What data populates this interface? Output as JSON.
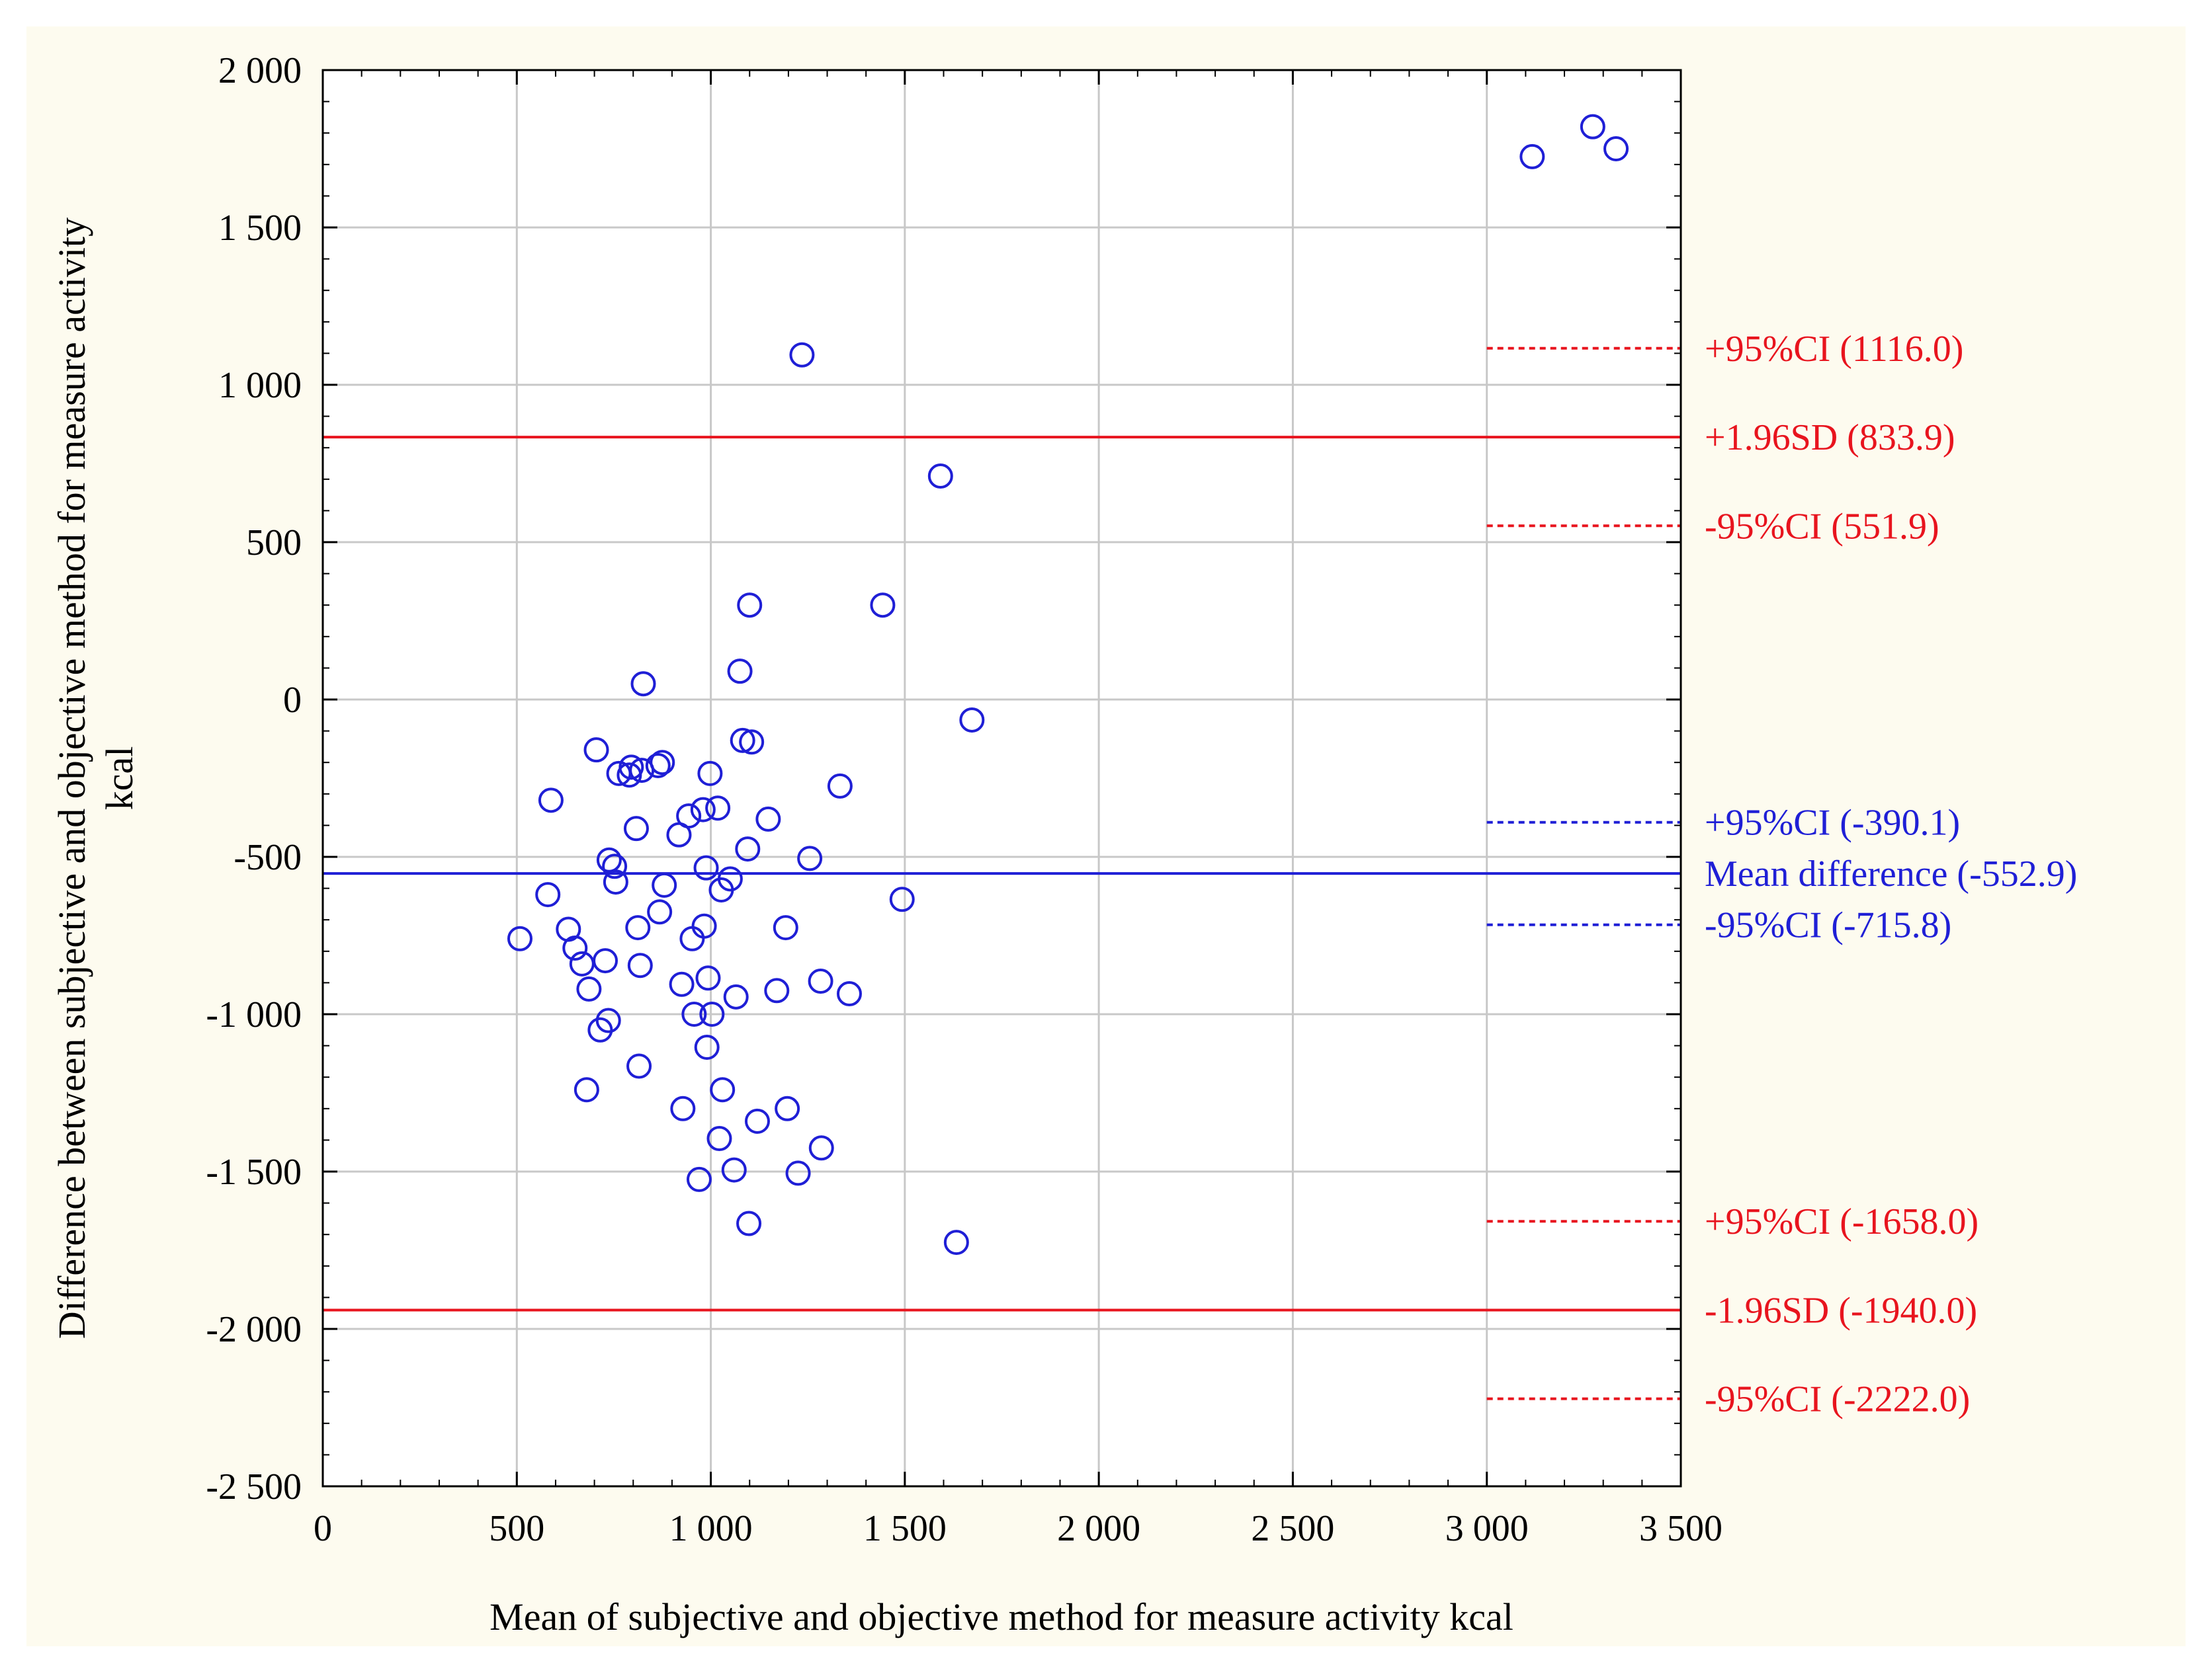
{
  "chart_data": {
    "type": "scatter",
    "title": "",
    "xlabel": "Mean of subjective and objective method for measure activity kcal",
    "ylabel_line1": "Difference between subjective and objective method for measure activity",
    "ylabel_line2": "kcal",
    "xlim": [
      0,
      3500
    ],
    "ylim": [
      -2500,
      2000
    ],
    "x_ticks": [
      0,
      500,
      1000,
      1500,
      2000,
      2500,
      3000,
      3500
    ],
    "x_tick_labels": [
      "0",
      "500",
      "1 000",
      "1 500",
      "2 000",
      "2 500",
      "3 000",
      "3 500"
    ],
    "y_ticks": [
      2000,
      1500,
      1000,
      500,
      0,
      -500,
      -1000,
      -1500,
      -2000,
      -2500
    ],
    "y_tick_labels": [
      "2 000",
      "1 500",
      "1 000",
      "500",
      "0",
      "-500",
      "-1 000",
      "-1 500",
      "-2 000",
      "-2 500"
    ],
    "grid": true,
    "colors": {
      "background": "#fdfbef",
      "plot_background": "#ffffff",
      "points": "#1f1fd6",
      "red_lines": "#e8141e",
      "blue_lines": "#1f1fd6",
      "grid": "#c8c8c8"
    },
    "points": [
      {
        "x": 508,
        "y": -760
      },
      {
        "x": 580,
        "y": -620
      },
      {
        "x": 588,
        "y": -320
      },
      {
        "x": 633,
        "y": -730
      },
      {
        "x": 650,
        "y": -790
      },
      {
        "x": 668,
        "y": -840
      },
      {
        "x": 686,
        "y": -920
      },
      {
        "x": 680,
        "y": -1240
      },
      {
        "x": 705,
        "y": -160
      },
      {
        "x": 715,
        "y": -1050
      },
      {
        "x": 728,
        "y": -830
      },
      {
        "x": 736,
        "y": -1020
      },
      {
        "x": 738,
        "y": -510
      },
      {
        "x": 752,
        "y": -530
      },
      {
        "x": 755,
        "y": -580
      },
      {
        "x": 763,
        "y": -235
      },
      {
        "x": 790,
        "y": -240
      },
      {
        "x": 795,
        "y": -215
      },
      {
        "x": 808,
        "y": -410
      },
      {
        "x": 812,
        "y": -725
      },
      {
        "x": 815,
        "y": -1165
      },
      {
        "x": 818,
        "y": -845
      },
      {
        "x": 822,
        "y": -225
      },
      {
        "x": 826,
        "y": 50
      },
      {
        "x": 864,
        "y": -210
      },
      {
        "x": 868,
        "y": -675
      },
      {
        "x": 875,
        "y": -200
      },
      {
        "x": 880,
        "y": -590
      },
      {
        "x": 918,
        "y": -430
      },
      {
        "x": 925,
        "y": -905
      },
      {
        "x": 928,
        "y": -1300
      },
      {
        "x": 943,
        "y": -370
      },
      {
        "x": 952,
        "y": -760
      },
      {
        "x": 957,
        "y": -1000
      },
      {
        "x": 970,
        "y": -1525
      },
      {
        "x": 980,
        "y": -350
      },
      {
        "x": 983,
        "y": -720
      },
      {
        "x": 988,
        "y": -535
      },
      {
        "x": 990,
        "y": -1105
      },
      {
        "x": 993,
        "y": -885
      },
      {
        "x": 998,
        "y": -235
      },
      {
        "x": 1003,
        "y": -1000
      },
      {
        "x": 1018,
        "y": -345
      },
      {
        "x": 1022,
        "y": -1395
      },
      {
        "x": 1027,
        "y": -605
      },
      {
        "x": 1030,
        "y": -1240
      },
      {
        "x": 1050,
        "y": -570
      },
      {
        "x": 1060,
        "y": -1495
      },
      {
        "x": 1065,
        "y": -945
      },
      {
        "x": 1075,
        "y": 90
      },
      {
        "x": 1082,
        "y": -130
      },
      {
        "x": 1095,
        "y": -475
      },
      {
        "x": 1098,
        "y": -1665
      },
      {
        "x": 1100,
        "y": 300
      },
      {
        "x": 1105,
        "y": -135
      },
      {
        "x": 1120,
        "y": -1340
      },
      {
        "x": 1148,
        "y": -380
      },
      {
        "x": 1170,
        "y": -925
      },
      {
        "x": 1193,
        "y": -725
      },
      {
        "x": 1197,
        "y": -1300
      },
      {
        "x": 1225,
        "y": -1505
      },
      {
        "x": 1235,
        "y": 1095
      },
      {
        "x": 1255,
        "y": -505
      },
      {
        "x": 1283,
        "y": -895
      },
      {
        "x": 1285,
        "y": -1425
      },
      {
        "x": 1333,
        "y": -275
      },
      {
        "x": 1357,
        "y": -935
      },
      {
        "x": 1443,
        "y": 300
      },
      {
        "x": 1493,
        "y": -635
      },
      {
        "x": 1592,
        "y": 710
      },
      {
        "x": 1633,
        "y": -1725
      },
      {
        "x": 1673,
        "y": -65
      },
      {
        "x": 3117,
        "y": 1725
      },
      {
        "x": 3273,
        "y": 1820
      },
      {
        "x": 3333,
        "y": 1750
      }
    ],
    "reference_lines": [
      {
        "id": "upper-ci-high",
        "y": 1116.0,
        "color": "red",
        "style": "dotted",
        "label": "+95%CI (1116.0)",
        "span": "partial"
      },
      {
        "id": "upper-loa",
        "y": 833.9,
        "color": "red",
        "style": "solid",
        "label": "+1.96SD (833.9)",
        "span": "full"
      },
      {
        "id": "upper-ci-low",
        "y": 551.9,
        "color": "red",
        "style": "dotted",
        "label": "-95%CI (551.9)",
        "span": "partial"
      },
      {
        "id": "mean-ci-high",
        "y": -390.1,
        "color": "blue",
        "style": "dotted",
        "label": "+95%CI (-390.1)",
        "span": "partial"
      },
      {
        "id": "mean-difference",
        "y": -552.9,
        "color": "blue",
        "style": "solid",
        "label": "Mean difference (-552.9)",
        "span": "full"
      },
      {
        "id": "mean-ci-low",
        "y": -715.8,
        "color": "blue",
        "style": "dotted",
        "label": "-95%CI (-715.8)",
        "span": "partial"
      },
      {
        "id": "lower-ci-high",
        "y": -1658.0,
        "color": "red",
        "style": "dotted",
        "label": "+95%CI (-1658.0)",
        "span": "partial"
      },
      {
        "id": "lower-loa",
        "y": -1940.0,
        "color": "red",
        "style": "solid",
        "label": "-1.96SD (-1940.0)",
        "span": "full"
      },
      {
        "id": "lower-ci-low",
        "y": -2222.0,
        "color": "red",
        "style": "dotted",
        "label": "-95%CI (-2222.0)",
        "span": "partial"
      }
    ]
  }
}
